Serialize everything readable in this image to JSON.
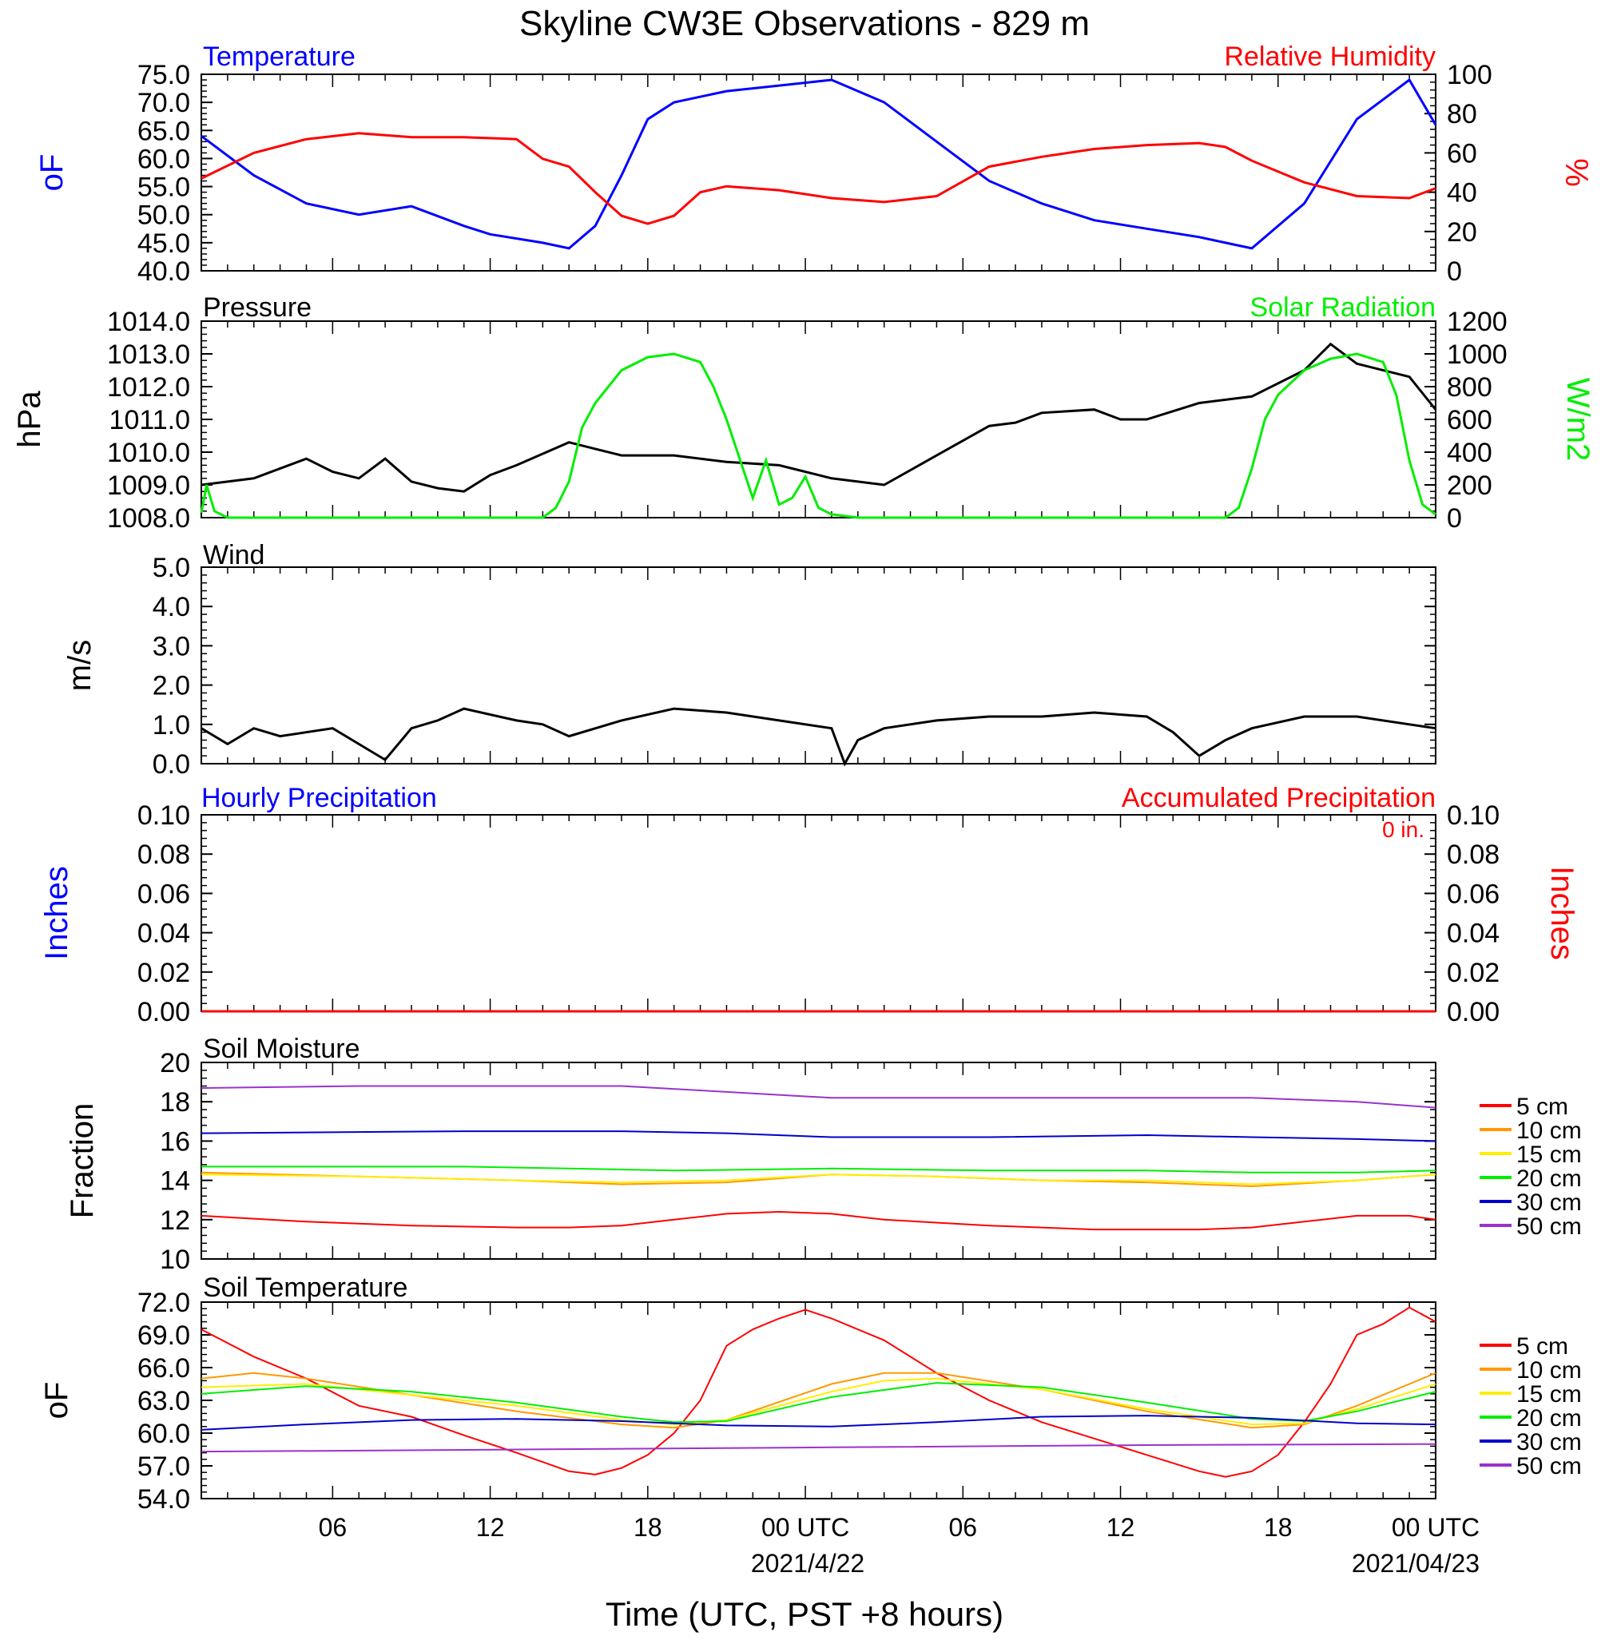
{
  "title": "Skyline CW3E Observations - 829 m",
  "xlabel": "Time (UTC, PST +8 hours)",
  "x_ticks": [
    "06",
    "12",
    "18",
    "00 UTC",
    "06",
    "12",
    "18",
    "00 UTC"
  ],
  "x_dates": [
    "2021/4/22",
    "2021/04/23"
  ],
  "colors": {
    "blue": "#0000ff",
    "red": "#ff0000",
    "green": "#00ee00",
    "orange": "#ff9900",
    "yellow": "#ffee00",
    "darkblue": "#0000cc",
    "purple": "#9933cc",
    "black": "#000000"
  },
  "panels": {
    "temp": {
      "left_title": "Temperature",
      "right_title": "Relative Humidity",
      "left_unit": "oF",
      "right_unit": "%",
      "left_ticks": [
        "75.0",
        "70.0",
        "65.0",
        "60.0",
        "55.0",
        "50.0",
        "45.0",
        "40.0"
      ],
      "right_ticks": [
        "100",
        "80",
        "60",
        "40",
        "20",
        "0"
      ]
    },
    "pressure": {
      "left_title": "Pressure",
      "right_title": "Solar Radiation",
      "left_unit": "hPa",
      "right_unit": "W/m2",
      "left_ticks": [
        "1014.0",
        "1013.0",
        "1012.0",
        "1011.0",
        "1010.0",
        "1009.0",
        "1008.0"
      ],
      "right_ticks": [
        "1200",
        "1000",
        "800",
        "600",
        "400",
        "200",
        "0"
      ]
    },
    "wind": {
      "left_title": "Wind",
      "left_unit": "m/s",
      "left_ticks": [
        "5.0",
        "4.0",
        "3.0",
        "2.0",
        "1.0",
        "0.0"
      ]
    },
    "precip": {
      "left_title": "Hourly Precipitation",
      "right_title": "Accumulated Precipitation",
      "accum_label": "0 in.",
      "left_unit": "Inches",
      "right_unit": "Inches",
      "left_ticks": [
        "0.10",
        "0.08",
        "0.06",
        "0.04",
        "0.02",
        "0.00"
      ],
      "right_ticks": [
        "0.10",
        "0.08",
        "0.06",
        "0.04",
        "0.02",
        "0.00"
      ]
    },
    "soilm": {
      "left_title": "Soil Moisture",
      "left_unit": "Fraction",
      "left_ticks": [
        "20",
        "18",
        "16",
        "14",
        "12",
        "10"
      ]
    },
    "soilt": {
      "left_title": "Soil Temperature",
      "left_unit": "oF",
      "left_ticks": [
        "72.0",
        "69.0",
        "66.0",
        "63.0",
        "60.0",
        "57.0",
        "54.0"
      ]
    }
  },
  "legend_depths": [
    "5 cm",
    "10 cm",
    "15 cm",
    "20 cm",
    "30 cm",
    "50 cm"
  ],
  "chart_data": [
    {
      "type": "line",
      "panel": "temp",
      "x_unit": "hours since 2021-04-21 01 UTC",
      "ylim": [
        40,
        75
      ],
      "y2lim": [
        0,
        100
      ],
      "series": [
        {
          "name": "Temperature",
          "axis": "left",
          "color": "#0000ff",
          "x": [
            0,
            2,
            4,
            6,
            8,
            10,
            11,
            13,
            14,
            15,
            16,
            17,
            18,
            20,
            22,
            24,
            26,
            28,
            30,
            32,
            34,
            36,
            38,
            39,
            40,
            42,
            44,
            46,
            47
          ],
          "values": [
            64,
            57,
            52,
            50,
            51.5,
            48,
            46.5,
            45,
            44,
            48,
            57,
            67,
            70,
            72,
            73,
            74,
            70,
            63,
            56,
            52,
            49,
            47.5,
            46,
            45,
            44,
            52,
            67,
            74,
            66
          ]
        },
        {
          "name": "Relative Humidity",
          "axis": "right",
          "color": "#ff0000",
          "x": [
            0,
            2,
            4,
            6,
            8,
            10,
            12,
            13,
            14,
            15,
            16,
            17,
            18,
            19,
            20,
            22,
            24,
            26,
            28,
            30,
            32,
            34,
            36,
            38,
            39,
            40,
            42,
            44,
            46,
            47
          ],
          "values": [
            47,
            60,
            67,
            70,
            68,
            68,
            67,
            57,
            53,
            40,
            28,
            24,
            28,
            40,
            43,
            41,
            37,
            35,
            38,
            53,
            58,
            62,
            64,
            65,
            63,
            56,
            45,
            38,
            37,
            42
          ]
        }
      ]
    },
    {
      "type": "line",
      "panel": "pressure",
      "ylim": [
        1008,
        1014
      ],
      "y2lim": [
        0,
        1200
      ],
      "series": [
        {
          "name": "Pressure",
          "axis": "left",
          "color": "#000000",
          "x": [
            0,
            2,
            4,
            5,
            6,
            7,
            8,
            9,
            10,
            11,
            12,
            14,
            15,
            16,
            18,
            20,
            22,
            24,
            26,
            28,
            30,
            31,
            32,
            34,
            35,
            36,
            38,
            40,
            42,
            43,
            44,
            46,
            47
          ],
          "values": [
            1009,
            1009.2,
            1009.8,
            1009.4,
            1009.2,
            1009.8,
            1009.1,
            1008.9,
            1008.8,
            1009.3,
            1009.6,
            1010.3,
            1010.1,
            1009.9,
            1009.9,
            1009.7,
            1009.6,
            1009.2,
            1009.0,
            1009.9,
            1010.8,
            1010.9,
            1011.2,
            1011.3,
            1011.0,
            1011.0,
            1011.5,
            1011.7,
            1012.5,
            1013.3,
            1012.7,
            1012.3,
            1011.3
          ]
        },
        {
          "name": "Solar Radiation",
          "axis": "right",
          "color": "#00ee00",
          "x": [
            0,
            0.2,
            0.5,
            1,
            13,
            13.5,
            14,
            14.5,
            15,
            16,
            17,
            18,
            19,
            19.5,
            20,
            21,
            21.5,
            22,
            22.5,
            23,
            23.5,
            24,
            25,
            26,
            39,
            39.5,
            40,
            40.5,
            41,
            42,
            43,
            44,
            45,
            45.5,
            46,
            46.5,
            47
          ],
          "values": [
            30,
            200,
            40,
            0,
            0,
            60,
            220,
            550,
            700,
            900,
            980,
            1000,
            950,
            800,
            600,
            120,
            350,
            80,
            120,
            250,
            60,
            20,
            0,
            0,
            0,
            60,
            300,
            600,
            750,
            900,
            970,
            1000,
            950,
            750,
            350,
            80,
            20
          ]
        }
      ]
    },
    {
      "type": "line",
      "panel": "wind",
      "ylim": [
        0,
        5
      ],
      "series": [
        {
          "name": "Wind",
          "color": "#000000",
          "x": [
            0,
            1,
            2,
            3,
            5,
            6,
            7,
            8,
            9,
            10,
            12,
            13,
            14,
            16,
            18,
            20,
            22,
            24,
            24.5,
            25,
            26,
            28,
            30,
            32,
            34,
            36,
            37,
            38,
            39,
            40,
            42,
            44,
            46,
            47
          ],
          "values": [
            0.9,
            0.5,
            0.9,
            0.7,
            0.9,
            0.5,
            0.1,
            0.9,
            1.1,
            1.4,
            1.1,
            1.0,
            0.7,
            1.1,
            1.4,
            1.3,
            1.1,
            0.9,
            0.0,
            0.6,
            0.9,
            1.1,
            1.2,
            1.2,
            1.3,
            1.2,
            0.8,
            0.2,
            0.6,
            0.9,
            1.2,
            1.2,
            1.0,
            0.9
          ]
        }
      ]
    },
    {
      "type": "line",
      "panel": "precip",
      "ylim": [
        0,
        0.1
      ],
      "y2lim": [
        0,
        0.1
      ],
      "series": [
        {
          "name": "Hourly Precipitation",
          "axis": "left",
          "color": "#0000ff",
          "x": [
            0,
            47
          ],
          "values": [
            0,
            0
          ]
        },
        {
          "name": "Accumulated Precipitation",
          "axis": "right",
          "color": "#ff0000",
          "x": [
            0,
            47
          ],
          "values": [
            0,
            0
          ]
        }
      ]
    },
    {
      "type": "line",
      "panel": "soilm",
      "ylim": [
        10,
        20
      ],
      "series": [
        {
          "name": "5 cm",
          "color": "#ff0000",
          "x": [
            0,
            4,
            8,
            12,
            14,
            16,
            18,
            20,
            22,
            24,
            26,
            30,
            34,
            38,
            40,
            42,
            44,
            46,
            47
          ],
          "values": [
            12.2,
            11.9,
            11.7,
            11.6,
            11.6,
            11.7,
            12.0,
            12.3,
            12.4,
            12.3,
            12.0,
            11.7,
            11.5,
            11.5,
            11.6,
            11.9,
            12.2,
            12.2,
            12.0
          ]
        },
        {
          "name": "10 cm",
          "color": "#ff9900",
          "x": [
            0,
            6,
            12,
            16,
            20,
            24,
            28,
            32,
            36,
            40,
            44,
            47
          ],
          "values": [
            14.4,
            14.2,
            14.0,
            13.8,
            13.9,
            14.3,
            14.2,
            14.0,
            13.9,
            13.7,
            14.0,
            14.3
          ]
        },
        {
          "name": "15 cm",
          "color": "#ffee00",
          "x": [
            0,
            6,
            12,
            16,
            20,
            24,
            28,
            32,
            36,
            40,
            44,
            47
          ],
          "values": [
            14.3,
            14.2,
            14.0,
            13.9,
            14.0,
            14.3,
            14.2,
            14.0,
            14.0,
            13.8,
            14.0,
            14.3
          ]
        },
        {
          "name": "20 cm",
          "color": "#00ee00",
          "x": [
            0,
            10,
            14,
            18,
            24,
            30,
            36,
            40,
            44,
            47
          ],
          "values": [
            14.7,
            14.7,
            14.6,
            14.5,
            14.6,
            14.5,
            14.5,
            14.4,
            14.4,
            14.5
          ]
        },
        {
          "name": "30 cm",
          "color": "#0000cc",
          "x": [
            0,
            10,
            16,
            20,
            24,
            30,
            36,
            40,
            44,
            47
          ],
          "values": [
            16.4,
            16.5,
            16.5,
            16.4,
            16.2,
            16.2,
            16.3,
            16.2,
            16.1,
            16.0
          ]
        },
        {
          "name": "50 cm",
          "color": "#9933cc",
          "x": [
            0,
            6,
            12,
            16,
            20,
            24,
            30,
            36,
            40,
            44,
            47
          ],
          "values": [
            18.7,
            18.8,
            18.8,
            18.8,
            18.5,
            18.2,
            18.2,
            18.2,
            18.2,
            18.0,
            17.7
          ]
        }
      ]
    },
    {
      "type": "line",
      "panel": "soilt",
      "ylim": [
        54,
        72
      ],
      "series": [
        {
          "name": "5 cm",
          "color": "#ff0000",
          "x": [
            0,
            2,
            4,
            6,
            8,
            10,
            12,
            14,
            15,
            16,
            17,
            18,
            19,
            20,
            21,
            22,
            23,
            24,
            26,
            28,
            30,
            32,
            34,
            36,
            38,
            39,
            40,
            41,
            42,
            43,
            44,
            45,
            46,
            47
          ],
          "values": [
            69.5,
            67,
            65,
            62.5,
            61.5,
            59.8,
            58.2,
            56.5,
            56.2,
            56.8,
            58,
            60,
            63,
            68,
            69.5,
            70.5,
            71.3,
            70.5,
            68.5,
            65.5,
            63,
            61,
            59.5,
            58,
            56.5,
            56.0,
            56.5,
            58,
            61,
            64.5,
            69,
            70,
            71.5,
            70.2
          ]
        },
        {
          "name": "10 cm",
          "color": "#ff9900",
          "x": [
            0,
            2,
            4,
            8,
            12,
            16,
            18,
            20,
            24,
            26,
            28,
            32,
            36,
            40,
            42,
            44,
            47
          ],
          "values": [
            65,
            65.5,
            65,
            63.5,
            62,
            60.8,
            60.5,
            61.2,
            64.5,
            65.5,
            65.5,
            64,
            62,
            60.5,
            60.8,
            62.5,
            65.5
          ]
        },
        {
          "name": "15 cm",
          "color": "#ffee00",
          "x": [
            0,
            4,
            8,
            12,
            16,
            18,
            20,
            24,
            26,
            28,
            32,
            36,
            40,
            42,
            44,
            47
          ],
          "values": [
            64.2,
            64.5,
            63.5,
            62.5,
            61.2,
            60.8,
            61.2,
            63.8,
            64.8,
            65,
            64,
            62.2,
            60.8,
            60.9,
            62.2,
            64.5
          ]
        },
        {
          "name": "20 cm",
          "color": "#00ee00",
          "x": [
            0,
            4,
            8,
            12,
            16,
            18,
            20,
            24,
            28,
            32,
            36,
            40,
            42,
            44,
            47
          ],
          "values": [
            63.6,
            64.3,
            63.8,
            62.8,
            61.5,
            61.0,
            61.1,
            63.3,
            64.6,
            64.2,
            62.8,
            61.3,
            61.1,
            62.0,
            63.8
          ]
        },
        {
          "name": "30 cm",
          "color": "#0000cc",
          "x": [
            0,
            4,
            8,
            12,
            16,
            20,
            24,
            28,
            32,
            36,
            40,
            44,
            47
          ],
          "values": [
            60.3,
            60.8,
            61.2,
            61.3,
            61.1,
            60.7,
            60.6,
            61,
            61.5,
            61.6,
            61.4,
            60.9,
            60.8
          ]
        },
        {
          "name": "50 cm",
          "color": "#9933cc",
          "x": [
            0,
            12,
            24,
            36,
            47
          ],
          "values": [
            58.3,
            58.5,
            58.7,
            58.9,
            59.0
          ]
        }
      ]
    }
  ]
}
